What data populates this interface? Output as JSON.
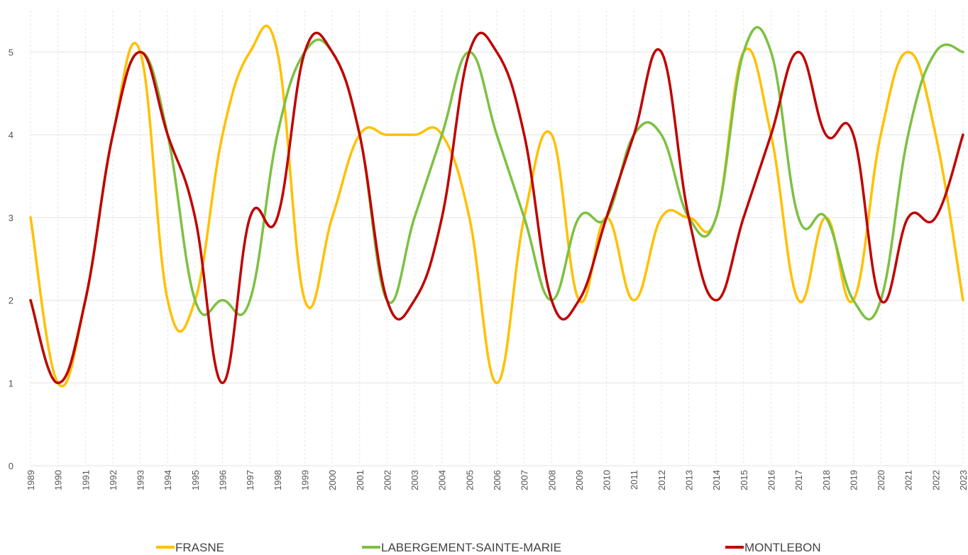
{
  "chart_data": {
    "type": "line",
    "smooth": true,
    "x": [
      1989,
      1990,
      1991,
      1992,
      1993,
      1994,
      1995,
      1996,
      1997,
      1998,
      1999,
      2000,
      2001,
      2002,
      2003,
      2004,
      2005,
      2006,
      2007,
      2008,
      2009,
      2010,
      2011,
      2012,
      2013,
      2014,
      2015,
      2016,
      2017,
      2018,
      2019,
      2020,
      2021,
      2022,
      2023
    ],
    "x_tick_labels": [
      "1989",
      "1990",
      "1991",
      "1992",
      "1993",
      "1994",
      "1995",
      "1996",
      "1997",
      "1998",
      "1999",
      "2000",
      "2001",
      "2002",
      "2003",
      "2004",
      "2005",
      "2006",
      "2007",
      "2008",
      "2009",
      "2010",
      "2011",
      "2012",
      "2013",
      "2014",
      "2015",
      "2016",
      "2017",
      "2018",
      "2019",
      "2020",
      "2021",
      "2022",
      "2023"
    ],
    "y_tick_labels": [
      "0",
      "1",
      "2",
      "3",
      "4",
      "5"
    ],
    "ylim": [
      0,
      5.5
    ],
    "grid": "horizontal solid, vertical dashed",
    "legend_position": "bottom",
    "title": "",
    "xlabel": "",
    "ylabel": "",
    "series": [
      {
        "name": "FRASNE",
        "color": "#FFC000",
        "values": [
          3,
          1,
          2,
          4,
          5,
          2,
          2,
          4,
          5,
          5,
          2,
          3,
          4,
          4,
          4,
          4,
          3,
          1,
          3,
          4,
          2,
          3,
          2,
          3,
          3,
          3,
          5,
          4,
          2,
          3,
          2,
          4,
          5,
          4,
          2
        ]
      },
      {
        "name": "LABERGEMENT-SAINTE-MARIE",
        "color": "#7CC142",
        "values": [
          2,
          1,
          2,
          4,
          5,
          4,
          2,
          2,
          2,
          4,
          5,
          5,
          4,
          2,
          3,
          4,
          5,
          4,
          3,
          2,
          3,
          3,
          4,
          4,
          3,
          3,
          5,
          5,
          3,
          3,
          2,
          2,
          4,
          5,
          5
        ]
      },
      {
        "name": "MONTLEBON",
        "color": "#C00000",
        "values": [
          2,
          1,
          2,
          4,
          5,
          4,
          3,
          1,
          3,
          3,
          5,
          5,
          4,
          2,
          2,
          3,
          5,
          5,
          4,
          2,
          2,
          3,
          4,
          5,
          3,
          2,
          3,
          4,
          5,
          4,
          4,
          2,
          3,
          3,
          4
        ]
      }
    ]
  }
}
